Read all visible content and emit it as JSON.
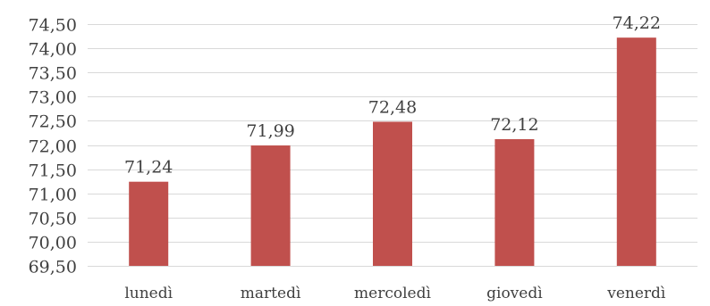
{
  "chart_data": {
    "type": "bar",
    "categories": [
      "lunedì",
      "martedì",
      "mercoledì",
      "giovedì",
      "venerdì"
    ],
    "values": [
      71.24,
      71.99,
      72.48,
      72.12,
      74.22
    ],
    "data_labels": [
      "71,24",
      "71,99",
      "72,48",
      "72,12",
      "74,22"
    ],
    "y_ticks": [
      69.5,
      70.0,
      70.5,
      71.0,
      71.5,
      72.0,
      72.5,
      73.0,
      73.5,
      74.0,
      74.5
    ],
    "y_tick_labels": [
      "69,50",
      "70,00",
      "70,50",
      "71,00",
      "71,50",
      "72,00",
      "72,50",
      "73,00",
      "73,50",
      "74,00",
      "74,50"
    ],
    "ylim": [
      69.5,
      74.5
    ],
    "grid": true,
    "legend": "none",
    "bar_color": "#c0504d",
    "grid_color": "#d9d9d9",
    "text_color": "#404040"
  }
}
